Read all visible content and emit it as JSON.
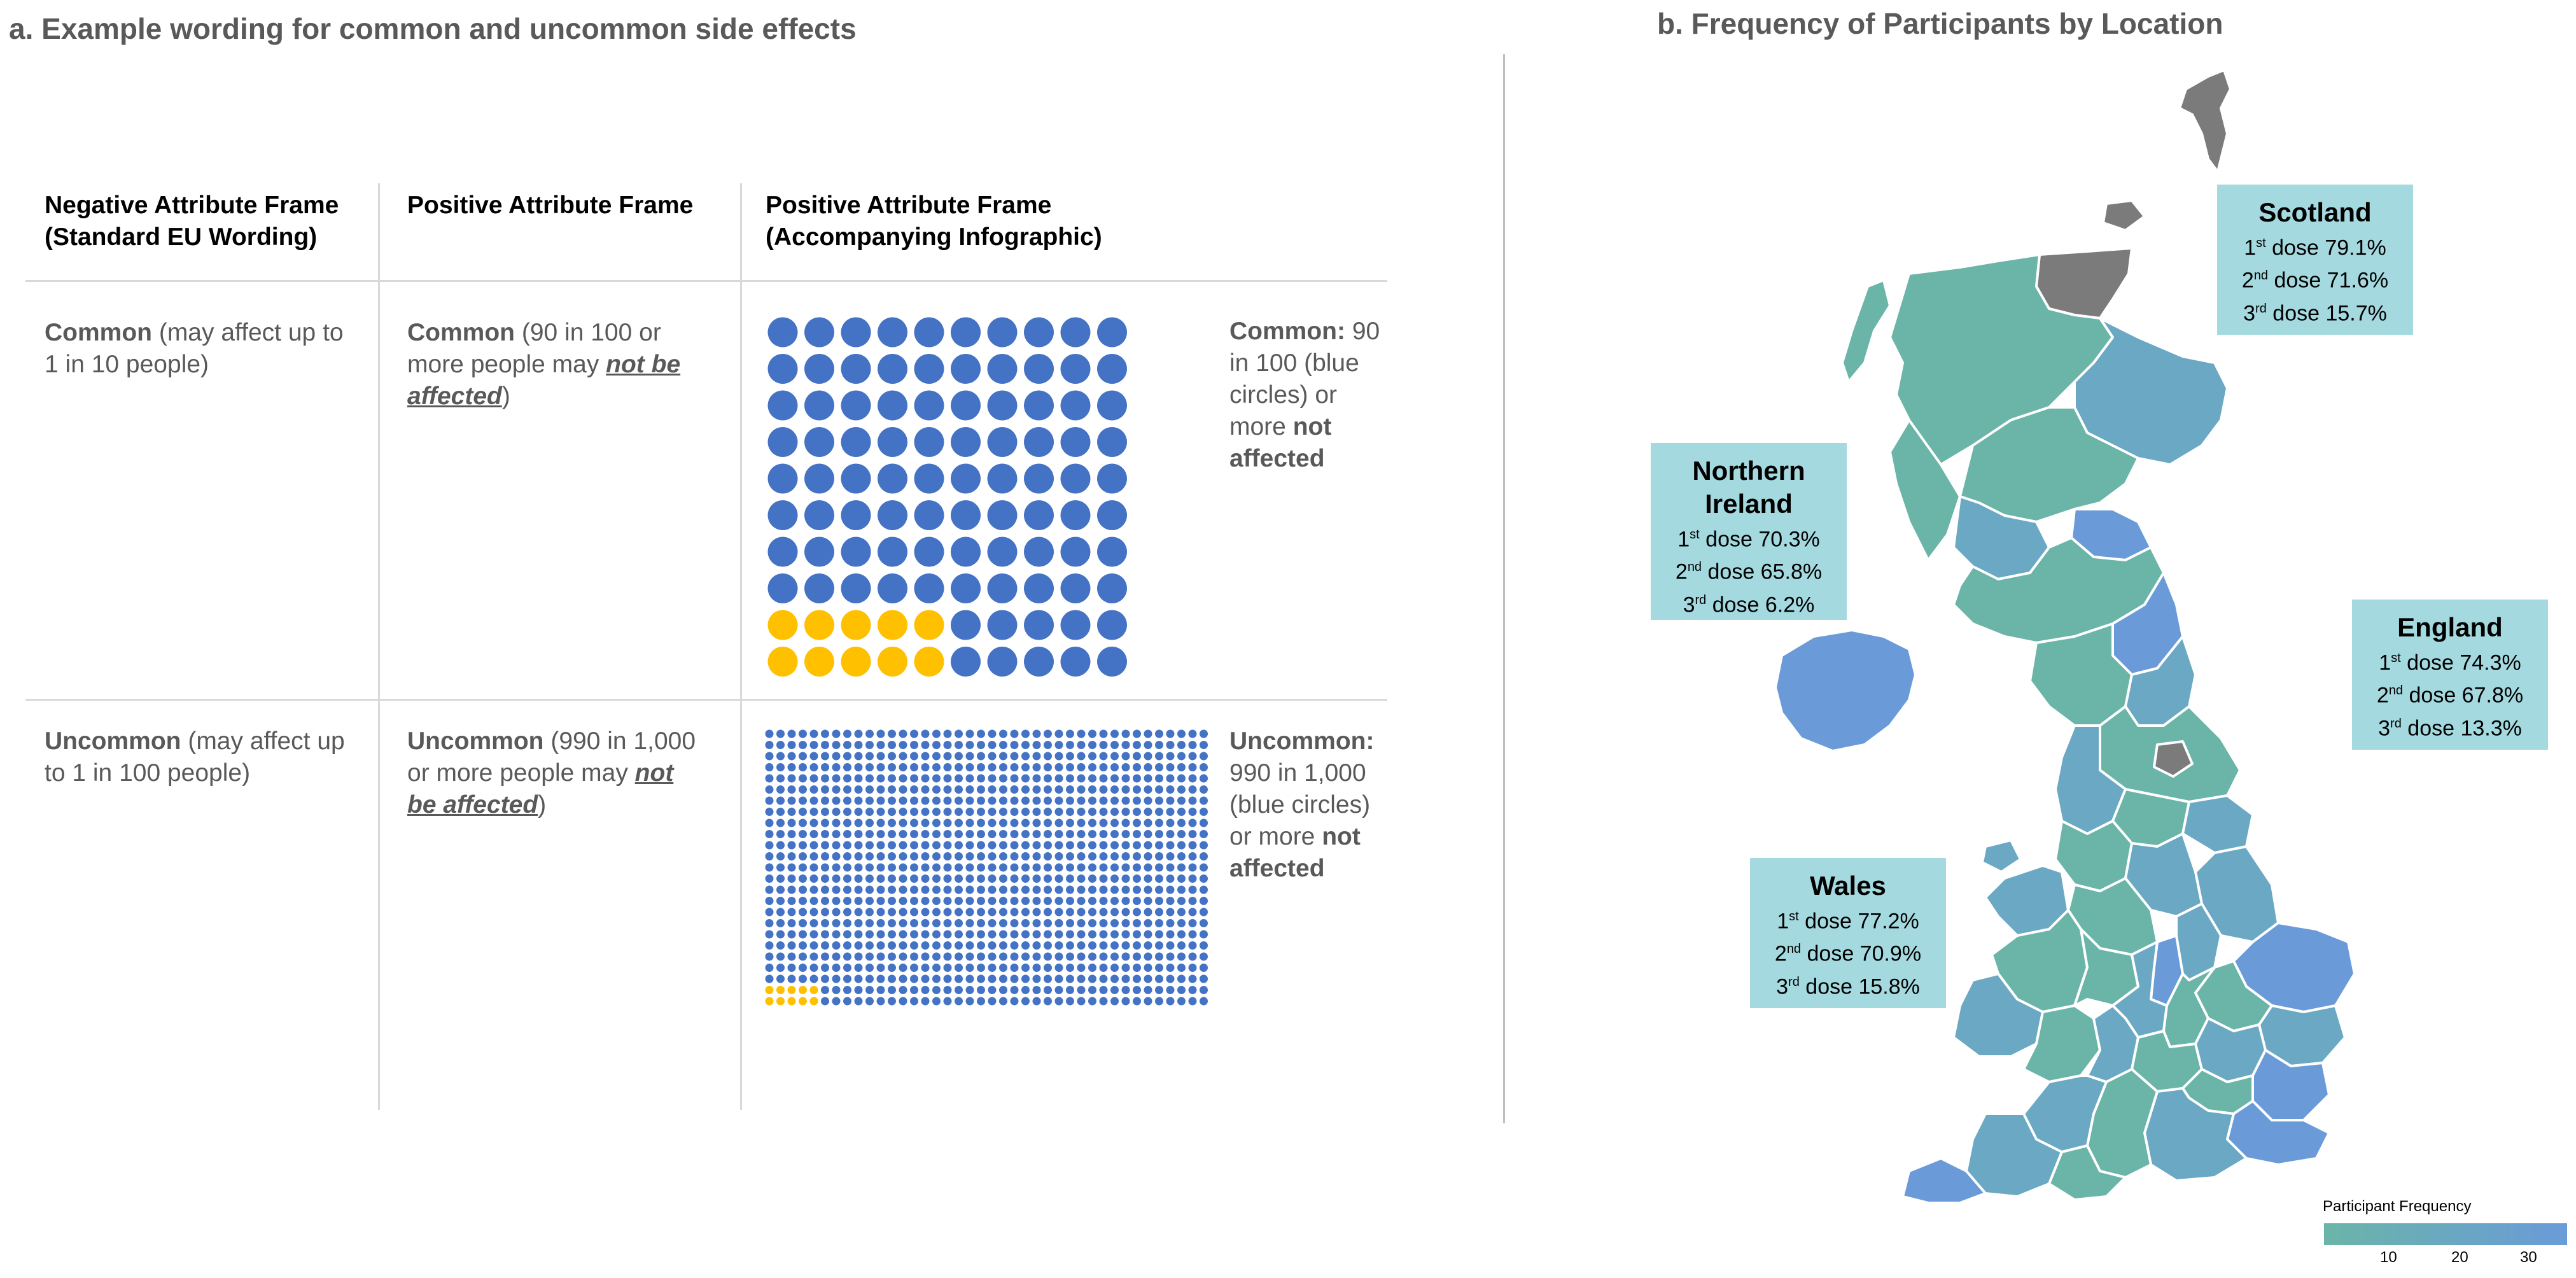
{
  "panel_a": {
    "title": "a. Example wording for common and uncommon side effects",
    "headers": [
      {
        "line1": "Negative Attribute Frame",
        "line2": "(Standard EU Wording)"
      },
      {
        "line1": "Positive Attribute Frame",
        "line2": ""
      },
      {
        "line1": "Positive Attribute Frame",
        "line2": "(Accompanying Infographic)"
      }
    ],
    "common": {
      "negative": {
        "bold": "Common",
        "rest": " (may affect up to 1 in 10 people)"
      },
      "positive": {
        "bold": "Common",
        "rest1": " (90 in 100 or more people may ",
        "emph": "not be affected",
        "rest2": ")"
      },
      "infographic": {
        "bold": "Common:",
        "rest": " 90 in 100 (blue circles) or more ",
        "bold2": "not affected"
      },
      "grid": {
        "total": 100,
        "affected": 10,
        "cols": 10
      }
    },
    "uncommon": {
      "negative": {
        "bold": "Uncommon",
        "rest": " (may affect up to 1 in 100 people)"
      },
      "positive": {
        "bold": "Uncommon",
        "rest1": " (990 in 1,000 or more people may ",
        "emph": "not be affected",
        "rest2": ")"
      },
      "infographic": {
        "bold": "Uncommon:",
        "rest": " 990 in 1,000 (blue circles) or more ",
        "bold2": "not affected"
      },
      "grid": {
        "total": 1000,
        "affected": 10,
        "cols": 40
      }
    },
    "colors": {
      "not_affected": "#4472c4",
      "affected": "#ffc000"
    }
  },
  "panel_b": {
    "title": "b. Frequency of Participants by Location",
    "regions": [
      {
        "name": "Scotland",
        "doses": [
          {
            "n": "1",
            "sup": "st",
            "label": " dose 79.1%"
          },
          {
            "n": "2",
            "sup": "nd",
            "label": " dose 71.6%"
          },
          {
            "n": "3",
            "sup": "rd",
            "label": " dose 15.7%"
          }
        ]
      },
      {
        "name": "Northern Ireland",
        "doses": [
          {
            "n": "1",
            "sup": "st",
            "label": " dose 70.3%"
          },
          {
            "n": "2",
            "sup": "nd",
            "label": " dose 65.8%"
          },
          {
            "n": "3",
            "sup": "rd",
            "label": " dose 6.2%"
          }
        ]
      },
      {
        "name": "England",
        "doses": [
          {
            "n": "1",
            "sup": "st",
            "label": " dose 74.3%"
          },
          {
            "n": "2",
            "sup": "nd",
            "label": " dose 67.8%"
          },
          {
            "n": "3",
            "sup": "rd",
            "label": " dose 13.3%"
          }
        ]
      },
      {
        "name": "Wales",
        "doses": [
          {
            "n": "1",
            "sup": "st",
            "label": " dose 77.2%"
          },
          {
            "n": "2",
            "sup": "nd",
            "label": " dose 70.9%"
          },
          {
            "n": "3",
            "sup": "rd",
            "label": " dose 15.8%"
          }
        ]
      }
    ],
    "legend": {
      "title": "Participant Frequency",
      "ticks": [
        "10",
        "20",
        "30"
      ],
      "color_low": "#6ab5a8",
      "color_high": "#6a9bd8"
    },
    "map_colors": {
      "teal": "#6ab5a8",
      "blue": "#6a9bd8",
      "mid": "#6aa8c4",
      "grey": "#7b7b7b",
      "border": "#ffffff"
    }
  }
}
